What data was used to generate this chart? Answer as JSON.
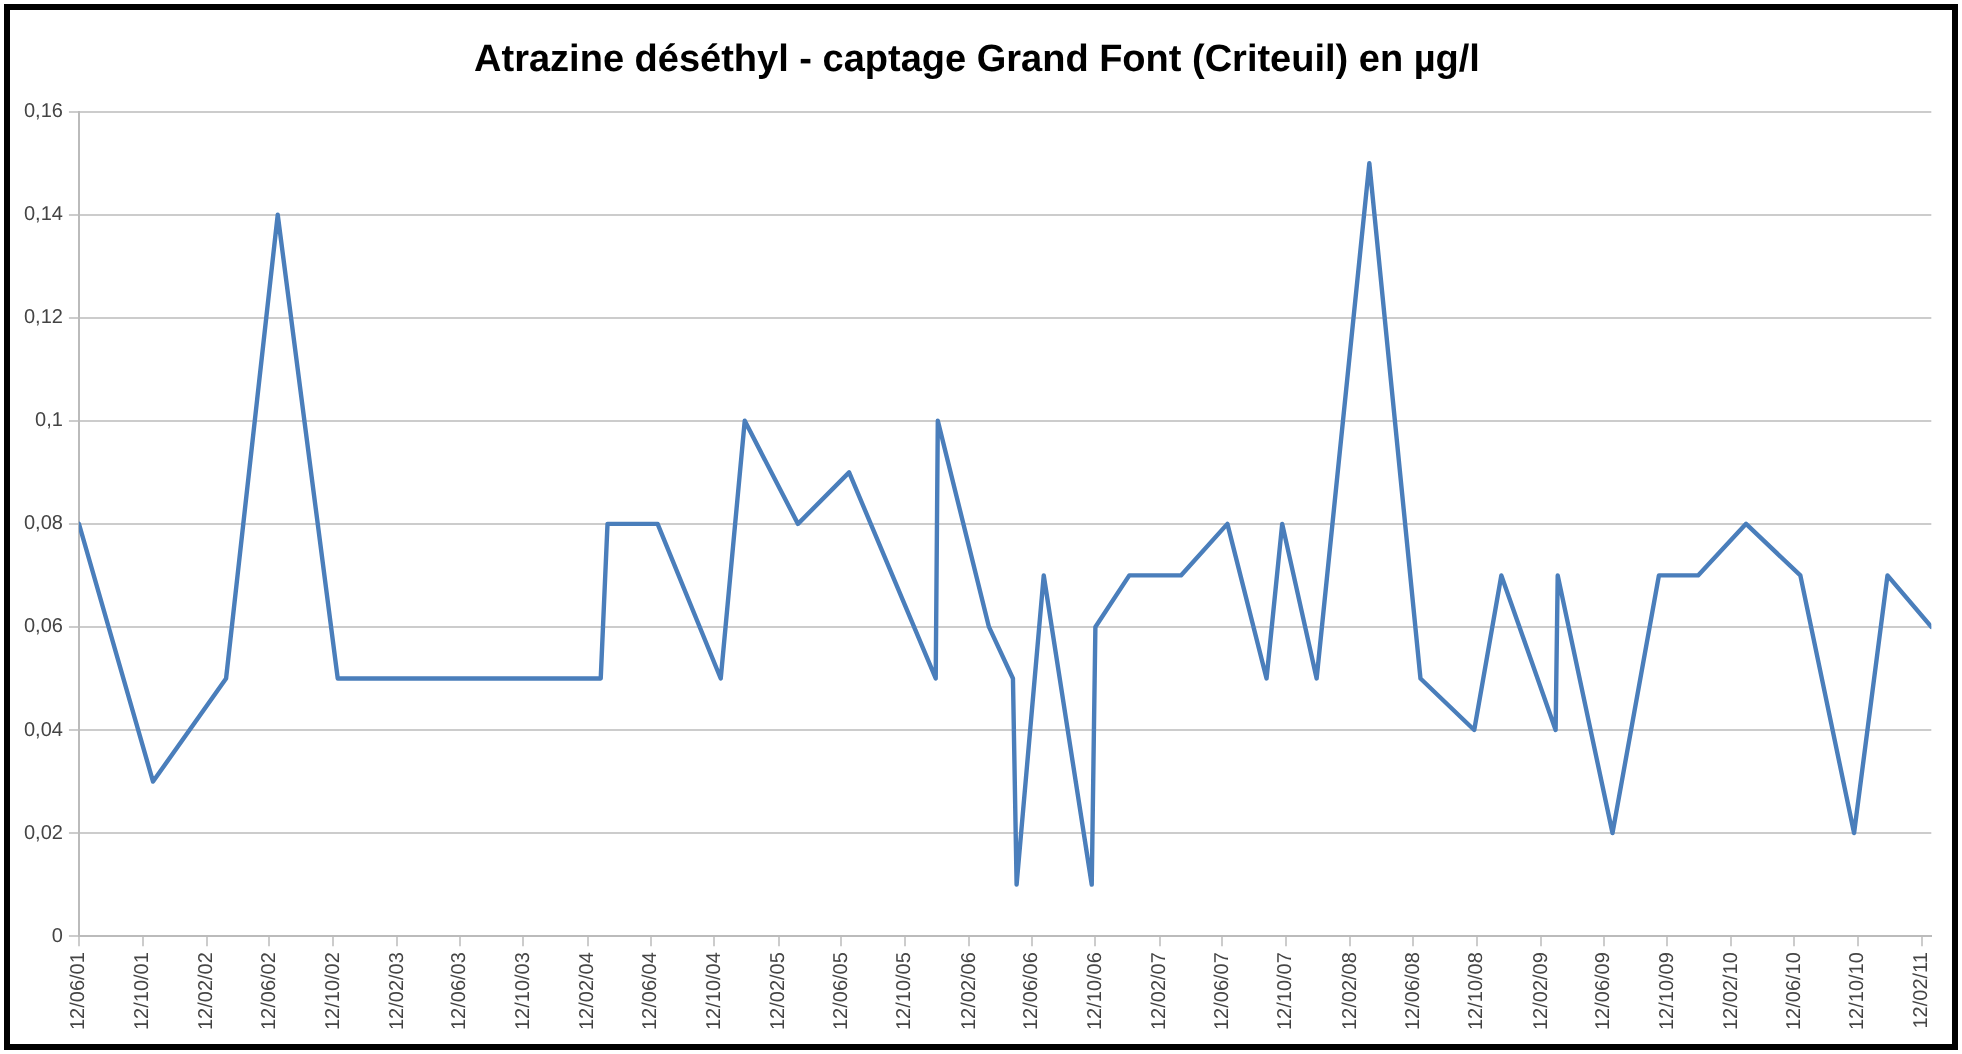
{
  "chart_data": {
    "type": "line",
    "title": "Atrazine déséthyl - captage Grand Font (Criteuil) en µg/l",
    "x": [
      "2001-06-12",
      "2001-11-01",
      "2002-03-21",
      "2002-06-28",
      "2002-10-21",
      "2004-03-08",
      "2004-03-21",
      "2004-06-25",
      "2004-10-24",
      "2004-12-09",
      "2005-03-21",
      "2005-06-27",
      "2005-12-10",
      "2005-12-14",
      "2006-03-22",
      "2006-05-07",
      "2006-05-14",
      "2006-07-05",
      "2006-10-05",
      "2006-10-12",
      "2006-12-16",
      "2007-03-25",
      "2007-06-22",
      "2007-09-05",
      "2007-10-05",
      "2007-12-10",
      "2008-03-20",
      "2008-06-26",
      "2008-10-07",
      "2008-11-28",
      "2009-03-12",
      "2009-03-16",
      "2009-06-29",
      "2009-09-26",
      "2009-12-10",
      "2010-03-12",
      "2010-06-24",
      "2010-10-05",
      "2010-12-08",
      "2011-03-02"
    ],
    "series": [
      {
        "color": "#4a7ebb",
        "values": [
          0.08,
          0.03,
          0.05,
          0.14,
          0.05,
          0.05,
          0.08,
          0.08,
          0.05,
          0.1,
          0.08,
          0.09,
          0.05,
          0.1,
          0.06,
          0.05,
          0.01,
          0.07,
          0.01,
          0.06,
          0.07,
          0.07,
          0.08,
          0.05,
          0.08,
          0.05,
          0.15,
          0.05,
          0.04,
          0.07,
          0.04,
          0.07,
          0.02,
          0.07,
          0.07,
          0.08,
          0.07,
          0.02,
          0.07,
          0.06
        ]
      }
    ],
    "xlim": [
      "2001-06-12",
      "2011-03-02"
    ],
    "xticks": [
      {
        "value": "2001-06-12",
        "label": "12/06/01"
      },
      {
        "value": "2001-10-12",
        "label": "12/10/01"
      },
      {
        "value": "2002-02-12",
        "label": "12/02/02"
      },
      {
        "value": "2002-06-12",
        "label": "12/06/02"
      },
      {
        "value": "2002-10-12",
        "label": "12/10/02"
      },
      {
        "value": "2003-02-12",
        "label": "12/02/03"
      },
      {
        "value": "2003-06-12",
        "label": "12/06/03"
      },
      {
        "value": "2003-10-12",
        "label": "12/10/03"
      },
      {
        "value": "2004-02-12",
        "label": "12/02/04"
      },
      {
        "value": "2004-06-12",
        "label": "12/06/04"
      },
      {
        "value": "2004-10-12",
        "label": "12/10/04"
      },
      {
        "value": "2005-02-12",
        "label": "12/02/05"
      },
      {
        "value": "2005-06-12",
        "label": "12/06/05"
      },
      {
        "value": "2005-10-12",
        "label": "12/10/05"
      },
      {
        "value": "2006-02-12",
        "label": "12/02/06"
      },
      {
        "value": "2006-06-12",
        "label": "12/06/06"
      },
      {
        "value": "2006-10-12",
        "label": "12/10/06"
      },
      {
        "value": "2007-02-12",
        "label": "12/02/07"
      },
      {
        "value": "2007-06-12",
        "label": "12/06/07"
      },
      {
        "value": "2007-10-12",
        "label": "12/10/07"
      },
      {
        "value": "2008-02-12",
        "label": "12/02/08"
      },
      {
        "value": "2008-06-12",
        "label": "12/06/08"
      },
      {
        "value": "2008-10-12",
        "label": "12/10/08"
      },
      {
        "value": "2009-02-12",
        "label": "12/02/09"
      },
      {
        "value": "2009-06-12",
        "label": "12/06/09"
      },
      {
        "value": "2009-10-12",
        "label": "12/10/09"
      },
      {
        "value": "2010-02-12",
        "label": "12/02/10"
      },
      {
        "value": "2010-06-12",
        "label": "12/06/10"
      },
      {
        "value": "2010-10-12",
        "label": "12/10/10"
      },
      {
        "value": "2011-02-12",
        "label": "12/02/11"
      }
    ],
    "ylim": [
      0,
      0.16
    ],
    "yticks": [
      0,
      {
        "value": 0.02,
        "label": "0,02"
      },
      {
        "value": 0.04,
        "label": "0,04"
      },
      {
        "value": 0.06,
        "label": "0,06"
      },
      {
        "value": 0.08,
        "label": "0,08"
      },
      {
        "value": 0.1,
        "label": "0,1"
      },
      {
        "value": 0.12,
        "label": "0,12"
      },
      {
        "value": 0.14,
        "label": "0,14"
      },
      {
        "value": 0.16,
        "label": "0,16"
      }
    ],
    "grid": "y",
    "legend": false,
    "marker": "none",
    "line_style": "solid"
  }
}
